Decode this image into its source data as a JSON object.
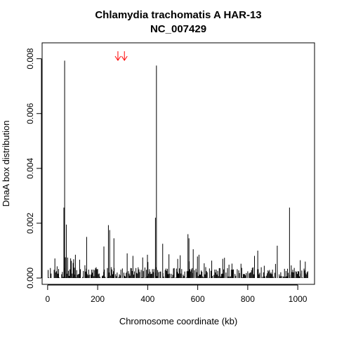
{
  "chart_data": {
    "type": "bar",
    "title": [
      "Chlamydia trachomatis A HAR-13",
      "NC_007429"
    ],
    "xlabel": "Chromosome coordinate (kb)",
    "ylabel": "DnaA box distribution",
    "xlim": [
      -22,
      1067
    ],
    "ylim": [
      -0.00023,
      0.00858
    ],
    "x_ticks": [
      0,
      200,
      400,
      600,
      800,
      1000
    ],
    "y_ticks": [
      0.0,
      0.002,
      0.004,
      0.006,
      0.008
    ],
    "y_tick_labels": [
      "0.000",
      "0.002",
      "0.004",
      "0.006",
      "0.008"
    ],
    "arrow_color": "#ff0000",
    "arrows_x": [
      281,
      307
    ],
    "bar_color": "#000000",
    "bars": [
      {
        "x": 65,
        "y": 0.00257
      },
      {
        "x": 68,
        "y": 0.00793
      },
      {
        "x": 75,
        "y": 0.00195
      },
      {
        "x": 431,
        "y": 0.0022
      },
      {
        "x": 435,
        "y": 0.00775
      },
      {
        "x": 967,
        "y": 0.00257
      },
      {
        "x": 243,
        "y": 0.00193
      },
      {
        "x": 248,
        "y": 0.00175
      },
      {
        "x": 225,
        "y": 0.00115
      },
      {
        "x": 265,
        "y": 0.00145
      },
      {
        "x": 156,
        "y": 0.0015
      },
      {
        "x": 102,
        "y": 0.00055
      },
      {
        "x": 111,
        "y": 0.00085
      },
      {
        "x": 318,
        "y": 0.0009
      },
      {
        "x": 380,
        "y": 0.00075
      },
      {
        "x": 399,
        "y": 0.00085
      },
      {
        "x": 460,
        "y": 0.00125
      },
      {
        "x": 520,
        "y": 0.0007
      },
      {
        "x": 561,
        "y": 0.0016
      },
      {
        "x": 565,
        "y": 0.00145
      },
      {
        "x": 582,
        "y": 0.00105
      },
      {
        "x": 605,
        "y": 0.00085
      },
      {
        "x": 700,
        "y": 0.0007
      },
      {
        "x": 840,
        "y": 0.001
      },
      {
        "x": 918,
        "y": 0.00118
      },
      {
        "x": 1010,
        "y": 0.00065
      },
      {
        "x": 1030,
        "y": 0.0006
      }
    ],
    "noise": {
      "x_start": 2,
      "x_end": 1040,
      "step": 3,
      "seed": 17,
      "base_max": 0.0004,
      "spike_max": 0.0009
    }
  }
}
